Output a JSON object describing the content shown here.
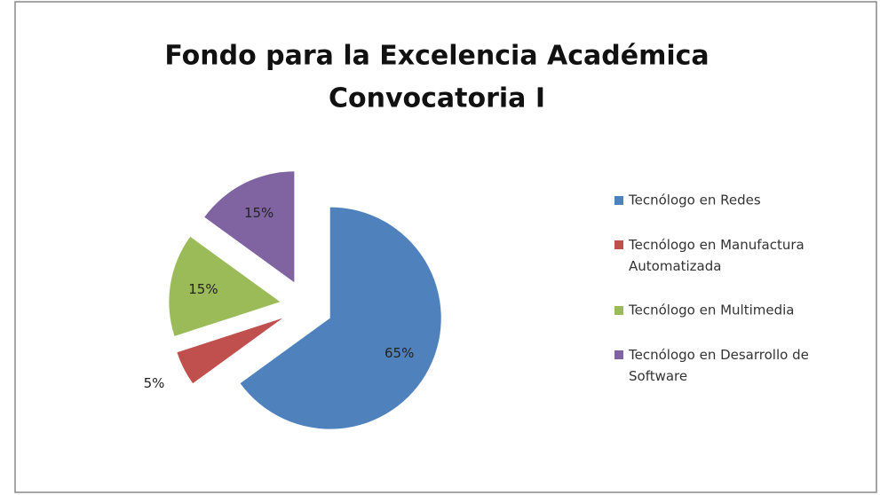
{
  "chart_data": {
    "type": "pie",
    "title": [
      "Fondo para la Excelencia Académica",
      "Convocatoria I"
    ],
    "categories": [
      "Tecnólogo en Redes",
      "Tecnólogo en Manufactura Automatizada",
      "Tecnólogo en Multimedia",
      "Tecnólogo en Desarrollo de Software"
    ],
    "values": [
      65,
      5,
      15,
      15
    ],
    "value_labels": [
      "65%",
      "5%",
      "15%",
      "15%"
    ],
    "colors": [
      "#4f81bd",
      "#c0504d",
      "#9bbb59",
      "#8064a2"
    ],
    "legend": "right"
  }
}
